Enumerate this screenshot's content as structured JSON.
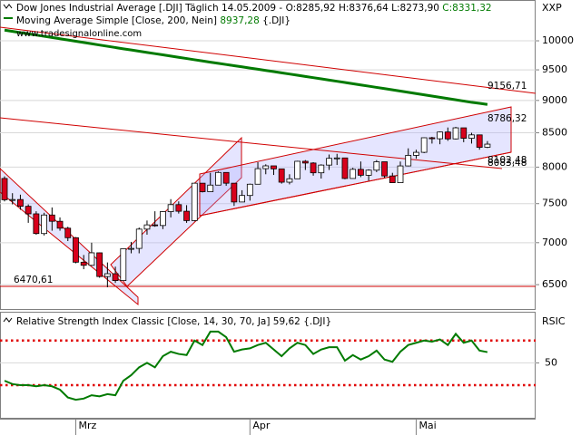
{
  "chart_data": [
    {
      "type": "candlestick",
      "title": "Dow Jones Industrial Average [.DJI]",
      "subtitle": "Täglich 14.05.2009 -",
      "quote": "O:8285,92 H:8376,64 L:8273,90",
      "quote_close": "C:8331,32",
      "watermark": "www.tradesignalonline.com",
      "axis_label": "XXP",
      "log_scale": true,
      "grid": true,
      "ylim": [
        6236,
        10459
      ],
      "yticks": [
        6500,
        7000,
        7500,
        8000,
        8500,
        9000,
        9500,
        10000
      ],
      "up_color": "#ffffff",
      "down_color": "#d8001c",
      "open": [
        7841,
        7552,
        7555,
        7465,
        7366,
        7114,
        7351,
        7270,
        7182,
        7062,
        6763,
        6726,
        6876,
        6594,
        6627,
        6547,
        6926,
        6930,
        7170,
        7224,
        7216,
        7395,
        7487,
        7400,
        7279,
        7776,
        7660,
        7750,
        7925,
        7776,
        7522,
        7609,
        7762,
        7978,
        8018,
        7975,
        7790,
        7837,
        8083,
        8058,
        7920,
        8029,
        8125,
        8131,
        7841,
        7969,
        7886,
        7957,
        8076,
        7876,
        7783,
        8017,
        8168,
        8212,
        8426,
        8411,
        8512,
        8409,
        8575,
        8418,
        8469,
        8285.92
      ],
      "high": [
        7870,
        7640,
        7620,
        7490,
        7400,
        7380,
        7450,
        7320,
        7200,
        7070,
        6850,
        7000,
        6880,
        6760,
        6710,
        6930,
        7010,
        7190,
        7280,
        7400,
        7400,
        7560,
        7530,
        7480,
        7780,
        7770,
        7920,
        7940,
        7920,
        7770,
        7680,
        7770,
        8070,
        8040,
        8010,
        7970,
        7900,
        8090,
        8100,
        8070,
        8040,
        8180,
        8190,
        8130,
        7990,
        8080,
        7970,
        8100,
        8070,
        7920,
        8080,
        8270,
        8250,
        8430,
        8440,
        8520,
        8580,
        8590,
        8570,
        8500,
        8460,
        8376.64
      ],
      "low": [
        7530,
        7490,
        7420,
        7250,
        7100,
        7090,
        7150,
        7150,
        7020,
        6750,
        6680,
        6720,
        6580,
        6470,
        6520,
        6547,
        6870,
        6870,
        7100,
        7200,
        7170,
        7320,
        7370,
        7250,
        7270,
        7650,
        7660,
        7750,
        7740,
        7470,
        7520,
        7540,
        7760,
        7900,
        7890,
        7770,
        7760,
        7840,
        7960,
        7880,
        7840,
        7960,
        8030,
        7830,
        7840,
        7860,
        7810,
        7930,
        7850,
        7780,
        7780,
        8010,
        8120,
        8200,
        8340,
        8330,
        8380,
        8400,
        8360,
        8340,
        8250,
        8273.9
      ],
      "close": [
        7552,
        7555,
        7465,
        7366,
        7114,
        7351,
        7270,
        7182,
        7062,
        6763,
        6726,
        6876,
        6594,
        6627,
        6547,
        6926,
        6930,
        7170,
        7224,
        7216,
        7395,
        7487,
        7400,
        7279,
        7776,
        7660,
        7750,
        7925,
        7776,
        7522,
        7609,
        7762,
        7978,
        8018,
        7975,
        7790,
        7837,
        8083,
        8058,
        7920,
        8029,
        8125,
        8131,
        7841,
        7969,
        7886,
        7957,
        8076,
        7876,
        7783,
        8017,
        8168,
        8212,
        8426,
        8411,
        8512,
        8409,
        8575,
        8418,
        8469,
        8285,
        8331.32
      ],
      "overlay": {
        "name": "Moving Average Simple [Close, 200, Nein]",
        "value_label": "8937,28",
        "source": "{.DJI}",
        "color": "#007a00",
        "values": [
          10190,
          10168,
          10146,
          10124,
          10102,
          10080,
          10058,
          10036,
          10014,
          9992,
          9970,
          9948,
          9926,
          9904,
          9882,
          9860,
          9839,
          9818,
          9797,
          9776,
          9755,
          9734,
          9713,
          9692,
          9671,
          9650,
          9630,
          9610,
          9590,
          9570,
          9550,
          9530,
          9510,
          9490,
          9470,
          9450,
          9430,
          9410,
          9390,
          9370,
          9350,
          9330,
          9310,
          9290,
          9270,
          9250,
          9230,
          9210,
          9190,
          9170,
          9150,
          9130,
          9110,
          9090,
          9070,
          9050,
          9030,
          9010,
          8990,
          8970,
          8955,
          8937.28
        ]
      },
      "annotations": [
        "9156,71",
        "8786,32",
        "8102,48",
        "8083,48",
        "6470,61"
      ]
    },
    {
      "type": "line",
      "title": "Relative Strength Index Classic [Close, 14, 30, 70, Ja]",
      "value_label": "59,62",
      "source": "{.DJI}",
      "axis_label": "RSIC",
      "ylim": [
        0,
        95
      ],
      "yticks": [
        50
      ],
      "thresholds": [
        30,
        70
      ],
      "threshold_color": "#e00000",
      "categories": [
        null,
        null,
        null,
        null,
        null,
        null,
        null,
        null,
        null,
        "Mrz",
        null,
        null,
        null,
        null,
        null,
        null,
        null,
        null,
        null,
        null,
        null,
        null,
        null,
        null,
        null,
        null,
        null,
        null,
        null,
        null,
        null,
        "Apr",
        null,
        null,
        null,
        null,
        null,
        null,
        null,
        null,
        null,
        null,
        null,
        null,
        null,
        null,
        null,
        null,
        null,
        null,
        null,
        null,
        "Mai",
        null,
        null,
        null,
        null,
        null,
        null,
        null,
        null,
        null
      ],
      "series": [
        {
          "color": "#007a00",
          "values": [
            34,
            31,
            30,
            30,
            29,
            30,
            29,
            26,
            19,
            17,
            18,
            21,
            20,
            22,
            21,
            34,
            39,
            46,
            50,
            46,
            56,
            60,
            58,
            57,
            70,
            66,
            78,
            78,
            73,
            60,
            62,
            63,
            66,
            68,
            62,
            56,
            63,
            68,
            66,
            58,
            62,
            64,
            64,
            52,
            57,
            53,
            56,
            61,
            53,
            51,
            60,
            66,
            68,
            70,
            69,
            71,
            66,
            76,
            68,
            70,
            61,
            59.62
          ]
        }
      ]
    }
  ]
}
